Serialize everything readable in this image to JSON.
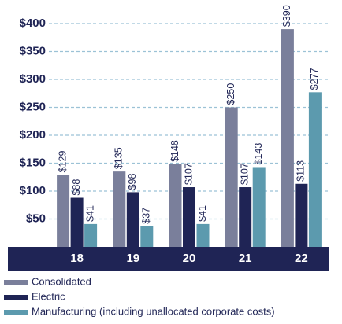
{
  "chart_data": {
    "type": "bar",
    "categories": [
      "18",
      "19",
      "20",
      "21",
      "22"
    ],
    "series": [
      {
        "name": "Consolidated",
        "color": "#7a7f9b",
        "values": [
          129,
          135,
          148,
          250,
          390
        ],
        "value_labels": [
          "$129",
          "$135",
          "$148",
          "$250",
          "$390"
        ]
      },
      {
        "name": "Electric",
        "color": "#1f2455",
        "values": [
          88,
          98,
          107,
          107,
          113
        ],
        "value_labels": [
          "$88",
          "$98",
          "$107",
          "$107",
          "$113"
        ]
      },
      {
        "name": "Manufacturing (including unallocated corporate costs)",
        "color": "#5c9aae",
        "values": [
          41,
          37,
          41,
          143,
          277
        ],
        "value_labels": [
          "$41",
          "$37",
          "$41",
          "$143",
          "$277"
        ]
      }
    ],
    "ylim": [
      0,
      400
    ],
    "yticks": [
      {
        "value": 50,
        "label": "$50"
      },
      {
        "value": 100,
        "label": "$100"
      },
      {
        "value": 150,
        "label": "$150"
      },
      {
        "value": 200,
        "label": "$200"
      },
      {
        "value": 250,
        "label": "$250"
      },
      {
        "value": 300,
        "label": "$300"
      },
      {
        "value": 350,
        "label": "$350"
      },
      {
        "value": 400,
        "label": "$400"
      }
    ],
    "grid": true
  }
}
